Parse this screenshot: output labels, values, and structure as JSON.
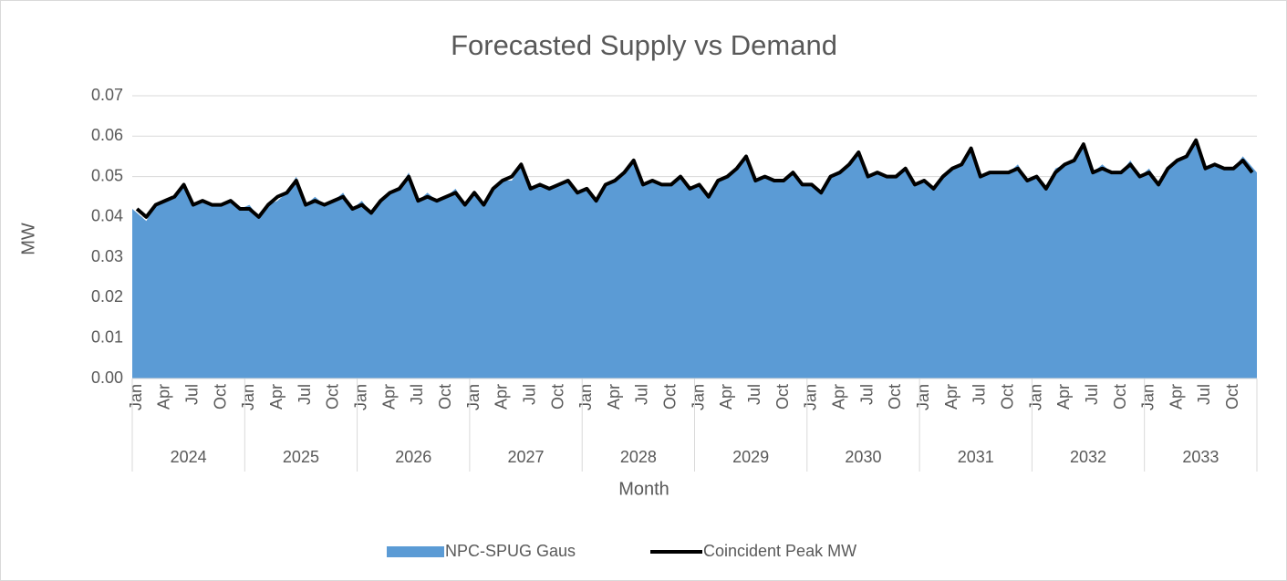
{
  "chart_data": {
    "type": "area-line",
    "title": "Forecasted Supply vs Demand",
    "x_label": "Month",
    "y_label": "MW",
    "categories": [
      "Jan",
      null,
      null,
      "Apr",
      null,
      null,
      "Jul",
      null,
      null,
      "Oct",
      null,
      null,
      "Jan",
      null,
      null,
      "Apr",
      null,
      null,
      "Jul",
      null,
      null,
      "Oct",
      null,
      null,
      "Jan",
      null,
      null,
      "Apr",
      null,
      null,
      "Jul",
      null,
      null,
      "Oct",
      null,
      null,
      "Jan",
      null,
      null,
      "Apr",
      null,
      null,
      "Jul",
      null,
      null,
      "Oct",
      null,
      null,
      "Jan",
      null,
      null,
      "Apr",
      null,
      null,
      "Jul",
      null,
      null,
      "Oct",
      null,
      null,
      "Jan",
      null,
      null,
      "Apr",
      null,
      null,
      "Jul",
      null,
      null,
      "Oct",
      null,
      null,
      "Jan",
      null,
      null,
      "Apr",
      null,
      null,
      "Jul",
      null,
      null,
      "Oct",
      null,
      null,
      "Jan",
      null,
      null,
      "Apr",
      null,
      null,
      "Jul",
      null,
      null,
      "Oct",
      null,
      null,
      "Jan",
      null,
      null,
      "Apr",
      null,
      null,
      "Jul",
      null,
      null,
      "Oct",
      null,
      null,
      "Jan",
      null,
      null,
      "Apr",
      null,
      null,
      "Jul",
      null,
      null,
      "Oct",
      null,
      null
    ],
    "groups": [
      "2024",
      "2025",
      "2026",
      "2027",
      "2028",
      "2029",
      "2030",
      "2031",
      "2032",
      "2033"
    ],
    "series": [
      {
        "name": "NPC-SPUG Gaus",
        "color": "#5b9bd5",
        "kind": "area",
        "values": [
          0.042,
          0.039,
          0.043,
          0.044,
          0.045,
          0.048,
          0.043,
          0.044,
          0.043,
          0.043,
          0.044,
          0.042,
          0.043,
          0.04,
          0.043,
          0.044,
          0.046,
          0.05,
          0.043,
          0.045,
          0.043,
          0.044,
          0.046,
          0.042,
          0.044,
          0.041,
          0.044,
          0.046,
          0.047,
          0.051,
          0.044,
          0.046,
          0.044,
          0.045,
          0.047,
          0.043,
          0.046,
          0.043,
          0.047,
          0.049,
          0.049,
          0.053,
          0.047,
          0.048,
          0.047,
          0.048,
          0.049,
          0.046,
          0.047,
          0.044,
          0.048,
          0.049,
          0.051,
          0.054,
          0.048,
          0.049,
          0.048,
          0.048,
          0.05,
          0.047,
          0.048,
          0.045,
          0.049,
          0.05,
          0.052,
          0.055,
          0.049,
          0.05,
          0.049,
          0.049,
          0.051,
          0.048,
          0.048,
          0.046,
          0.05,
          0.051,
          0.053,
          0.056,
          0.05,
          0.051,
          0.05,
          0.05,
          0.052,
          0.048,
          0.049,
          0.047,
          0.05,
          0.052,
          0.053,
          0.057,
          0.05,
          0.051,
          0.051,
          0.051,
          0.053,
          0.049,
          0.05,
          0.047,
          0.052,
          0.053,
          0.054,
          0.058,
          0.051,
          0.053,
          0.051,
          0.051,
          0.054,
          0.05,
          0.052,
          0.048,
          0.052,
          0.054,
          0.055,
          0.059,
          0.052,
          0.053,
          0.052,
          0.052,
          0.055,
          0.051
        ]
      },
      {
        "name": "Coincident Peak MW",
        "color": "#000000",
        "kind": "line",
        "values": [
          0.042,
          0.04,
          0.043,
          0.044,
          0.045,
          0.048,
          0.043,
          0.044,
          0.043,
          0.043,
          0.044,
          0.042,
          0.042,
          0.04,
          0.043,
          0.045,
          0.046,
          0.049,
          0.043,
          0.044,
          0.043,
          0.044,
          0.045,
          0.042,
          0.043,
          0.041,
          0.044,
          0.046,
          0.047,
          0.05,
          0.044,
          0.045,
          0.044,
          0.045,
          0.046,
          0.043,
          0.046,
          0.043,
          0.047,
          0.049,
          0.05,
          0.053,
          0.047,
          0.048,
          0.047,
          0.048,
          0.049,
          0.046,
          0.047,
          0.044,
          0.048,
          0.049,
          0.051,
          0.054,
          0.048,
          0.049,
          0.048,
          0.048,
          0.05,
          0.047,
          0.048,
          0.045,
          0.049,
          0.05,
          0.052,
          0.055,
          0.049,
          0.05,
          0.049,
          0.049,
          0.051,
          0.048,
          0.048,
          0.046,
          0.05,
          0.051,
          0.053,
          0.056,
          0.05,
          0.051,
          0.05,
          0.05,
          0.052,
          0.048,
          0.049,
          0.047,
          0.05,
          0.052,
          0.053,
          0.057,
          0.05,
          0.051,
          0.051,
          0.051,
          0.052,
          0.049,
          0.05,
          0.047,
          0.051,
          0.053,
          0.054,
          0.058,
          0.051,
          0.052,
          0.051,
          0.051,
          0.053,
          0.05,
          0.051,
          0.048,
          0.052,
          0.054,
          0.055,
          0.059,
          0.052,
          0.053,
          0.052,
          0.052,
          0.054,
          0.051
        ]
      }
    ],
    "ylim": [
      0,
      0.07
    ],
    "yticks": [
      {
        "value": 0,
        "label": "0.00"
      },
      0.01,
      0.02,
      0.03,
      0.04,
      0.05,
      0.06,
      0.07
    ],
    "grid": true
  }
}
